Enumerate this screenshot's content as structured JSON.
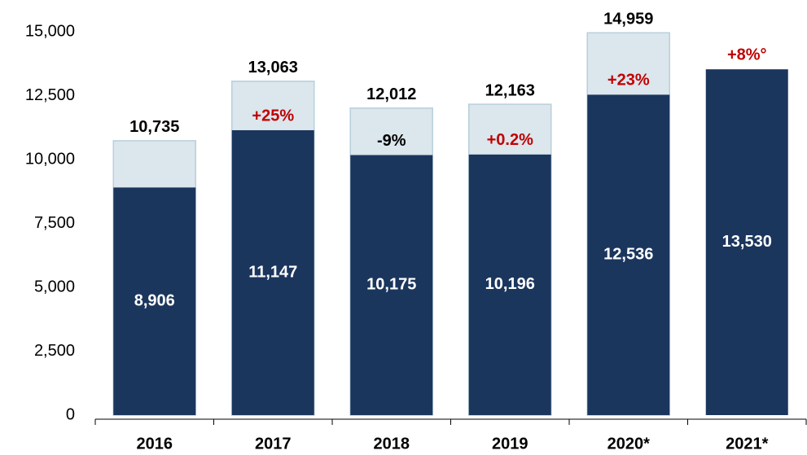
{
  "chart_data": {
    "type": "bar",
    "categories": [
      "2016",
      "2017",
      "2018",
      "2019",
      "2020*",
      "2021*"
    ],
    "series": [
      {
        "color": "#dbe6ed",
        "label_color": "#000000",
        "values": [
          10735,
          13063,
          12012,
          12163,
          14959,
          null
        ],
        "value_labels": [
          "10,735",
          "13,063",
          "12,012",
          "12,163",
          "14,959",
          null
        ]
      },
      {
        "color": "#1b365d",
        "label_color": "#ffffff",
        "values": [
          8906,
          11147,
          10175,
          10196,
          12536,
          13530
        ],
        "value_labels": [
          "8,906",
          "11,147",
          "10,175",
          "10,196",
          "12,536",
          "13,530"
        ]
      }
    ],
    "annotations": [
      null,
      "+25%",
      "-9%",
      "+0.2%",
      "+23%",
      "+8%°"
    ],
    "annotation_colors": [
      null,
      "#c00000",
      "#000000",
      "#c00000",
      "#c00000",
      "#c00000"
    ],
    "ylim": [
      0,
      15000
    ],
    "yticks": [
      0,
      {
        "value": 2500,
        "label": "2,500"
      },
      {
        "value": 5000,
        "label": "5,000"
      },
      {
        "value": 7500,
        "label": "7,500"
      },
      {
        "value": 10000,
        "label": "10,000"
      },
      {
        "value": 12500,
        "label": "12,500"
      },
      {
        "value": 15000,
        "label": "15,000"
      }
    ]
  }
}
